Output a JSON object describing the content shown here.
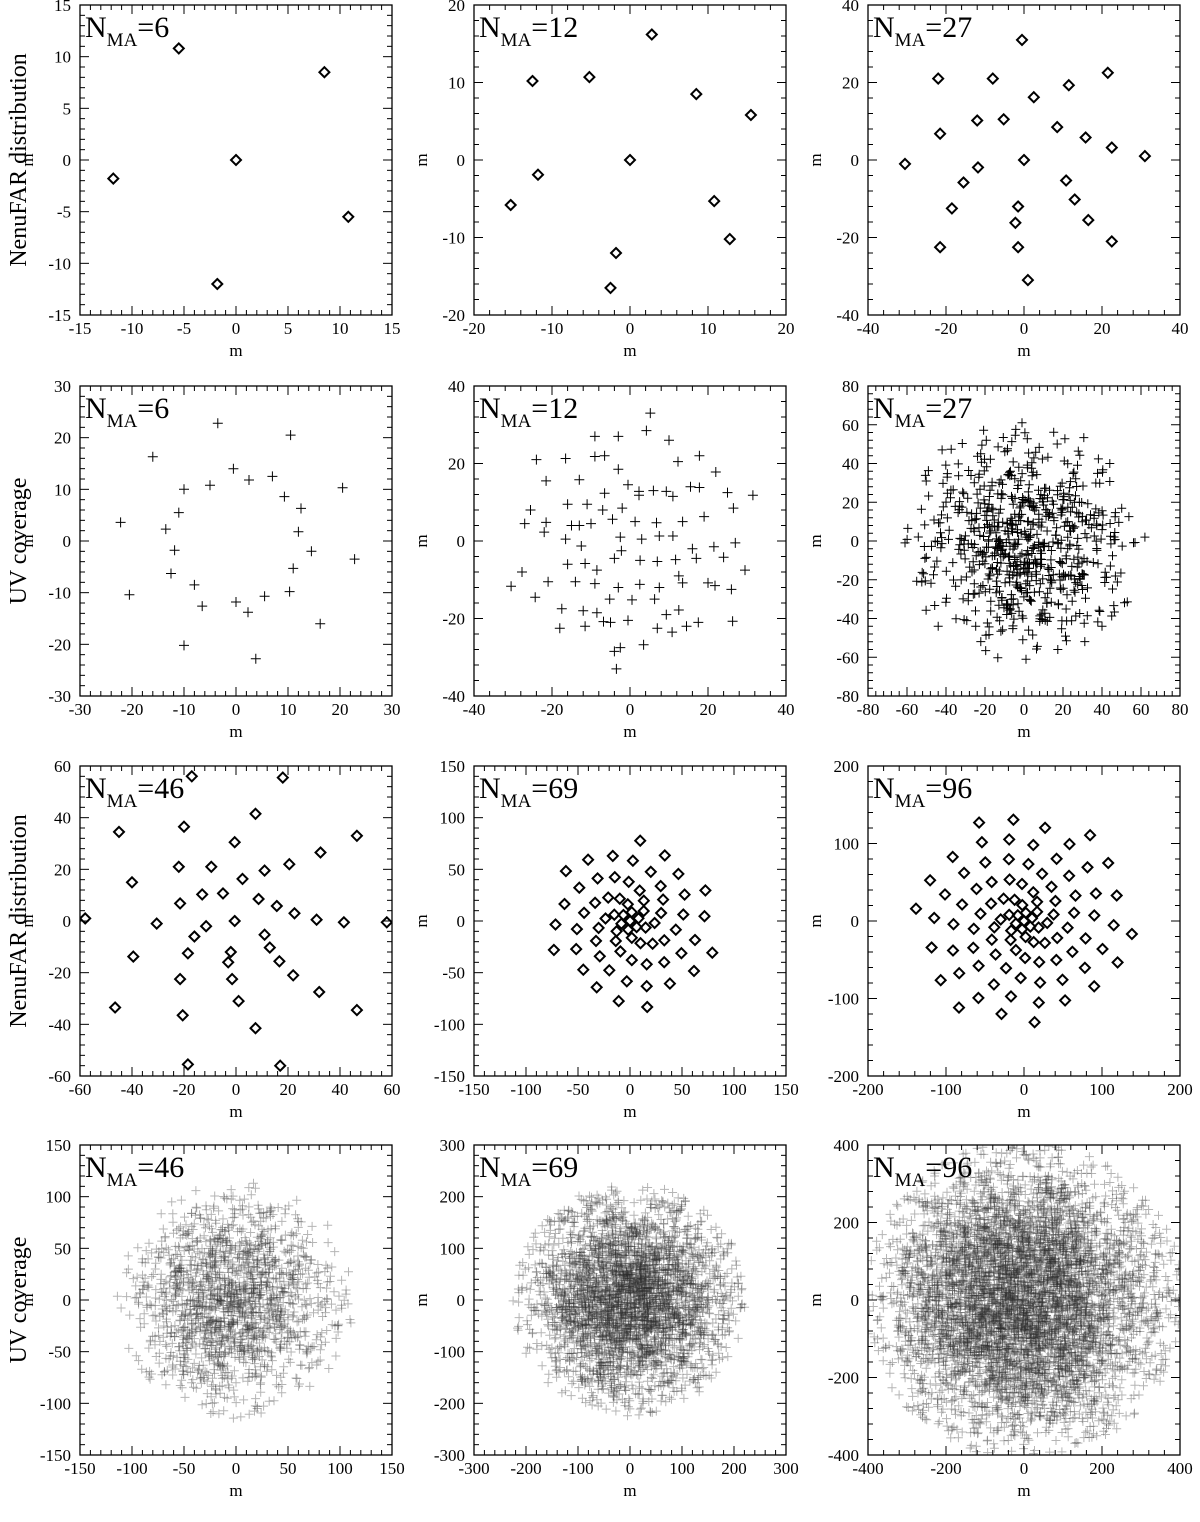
{
  "figure": {
    "row_labels": [
      "NenuFAR distribution",
      "UV coverage",
      "NenuFAR distribution",
      "UV coverage"
    ]
  },
  "chart_data": [
    {
      "type": "scatter",
      "title_main": "N",
      "title_sub": "MA",
      "title_tail": "=6",
      "xlabel": "m",
      "ylabel": "m",
      "marker": "diamond",
      "xlim": [
        -15,
        15
      ],
      "ylim": [
        -15,
        15
      ],
      "xticks": [
        -15,
        -10,
        -5,
        0,
        5,
        10,
        15
      ],
      "yticks": [
        -15,
        -10,
        -5,
        0,
        5,
        10,
        15
      ],
      "points": [
        [
          0,
          0
        ],
        [
          -5.5,
          10.8
        ],
        [
          8.5,
          8.5
        ],
        [
          -11.8,
          -1.8
        ],
        [
          10.8,
          -5.5
        ],
        [
          -1.8,
          -12
        ]
      ]
    },
    {
      "type": "scatter",
      "title_main": "N",
      "title_sub": "MA",
      "title_tail": "=12",
      "xlabel": "m",
      "ylabel": "m",
      "marker": "diamond",
      "xlim": [
        -20,
        20
      ],
      "ylim": [
        -20,
        20
      ],
      "xticks": [
        -20,
        -10,
        0,
        10,
        20
      ],
      "yticks": [
        -20,
        -10,
        0,
        10,
        20
      ],
      "points": [
        [
          0,
          0
        ],
        [
          -12.5,
          10.2
        ],
        [
          -5.2,
          10.7
        ],
        [
          2.8,
          16.2
        ],
        [
          8.5,
          8.5
        ],
        [
          15.5,
          5.8
        ],
        [
          -15.3,
          -5.8
        ],
        [
          -11.8,
          -1.9
        ],
        [
          10.8,
          -5.3
        ],
        [
          12.8,
          -10.2
        ],
        [
          -1.8,
          -12
        ],
        [
          -2.5,
          -16.5
        ]
      ]
    },
    {
      "type": "scatter",
      "title_main": "N",
      "title_sub": "MA",
      "title_tail": "=27",
      "xlabel": "m",
      "ylabel": "m",
      "marker": "diamond",
      "xlim": [
        -40,
        40
      ],
      "ylim": [
        -40,
        40
      ],
      "xticks": [
        -40,
        -20,
        0,
        20,
        40
      ],
      "yticks": [
        -40,
        -20,
        0,
        20,
        40
      ],
      "points": [
        [
          0,
          0
        ],
        [
          -0.5,
          31
        ],
        [
          -22,
          21
        ],
        [
          -8,
          21
        ],
        [
          21.5,
          22.5
        ],
        [
          2.5,
          16.2
        ],
        [
          11.5,
          19.3
        ],
        [
          -12,
          10.2
        ],
        [
          -5.2,
          10.5
        ],
        [
          8.5,
          8.5
        ],
        [
          -21.5,
          6.8
        ],
        [
          15.8,
          5.8
        ],
        [
          22.5,
          3.2
        ],
        [
          31,
          1
        ],
        [
          -30.5,
          -1
        ],
        [
          -11.8,
          -1.9
        ],
        [
          -15.5,
          -5.8
        ],
        [
          10.8,
          -5.3
        ],
        [
          13,
          -10.2
        ],
        [
          -18.5,
          -12.5
        ],
        [
          -1.5,
          -12
        ],
        [
          -2.2,
          -16.2
        ],
        [
          16.5,
          -15.5
        ],
        [
          -21.5,
          -22.5
        ],
        [
          -1.5,
          -22.5
        ],
        [
          22.5,
          -21
        ],
        [
          1,
          -31
        ]
      ]
    },
    {
      "type": "scatter",
      "title_main": "N",
      "title_sub": "MA",
      "title_tail": "=6",
      "xlabel": "m",
      "ylabel": "m",
      "marker": "plus",
      "xlim": [
        -30,
        30
      ],
      "ylim": [
        -30,
        30
      ],
      "xticks": [
        -30,
        -20,
        -10,
        0,
        10,
        20,
        30
      ],
      "yticks": [
        -30,
        -20,
        -10,
        0,
        10,
        20,
        30
      ],
      "points": [
        [
          -3.5,
          22.8
        ],
        [
          10.5,
          20.5
        ],
        [
          -16,
          16.3
        ],
        [
          -0.5,
          14
        ],
        [
          -10,
          10
        ],
        [
          -5,
          10.8
        ],
        [
          7,
          12.5
        ],
        [
          2.5,
          11.8
        ],
        [
          9.3,
          8.6
        ],
        [
          12.5,
          6.3
        ],
        [
          -22.2,
          3.6
        ],
        [
          -11,
          5.5
        ],
        [
          -13.5,
          2.3
        ],
        [
          12,
          1.8
        ],
        [
          20.5,
          10.3
        ],
        [
          -11.8,
          -1.8
        ],
        [
          14.5,
          -2
        ],
        [
          22.8,
          -3.5
        ],
        [
          -12.5,
          -6.3
        ],
        [
          11,
          -5.3
        ],
        [
          -8,
          -8.5
        ],
        [
          -6.5,
          -12.6
        ],
        [
          -20.5,
          -10.4
        ],
        [
          10.3,
          -9.8
        ],
        [
          0,
          -11.8
        ],
        [
          5.5,
          -10.7
        ],
        [
          2.3,
          -13.8
        ],
        [
          16.2,
          -16
        ],
        [
          -10,
          -20.2
        ],
        [
          3.8,
          -22.8
        ]
      ]
    },
    {
      "type": "scatter",
      "title_main": "N",
      "title_sub": "MA",
      "title_tail": "=12",
      "xlabel": "m",
      "ylabel": "m",
      "marker": "plus",
      "xlim": [
        -40,
        40
      ],
      "ylim": [
        -40,
        40
      ],
      "xticks": [
        -40,
        -20,
        0,
        20,
        40
      ],
      "yticks": [
        -40,
        -20,
        0,
        20,
        40
      ],
      "points": [
        [
          5.2,
          33
        ],
        [
          4.2,
          28.5
        ],
        [
          -9,
          27
        ],
        [
          -3,
          27
        ],
        [
          10,
          26
        ],
        [
          -24,
          21
        ],
        [
          -16.5,
          21.3
        ],
        [
          -9,
          21.8
        ],
        [
          -6.5,
          22
        ],
        [
          12.3,
          20.5
        ],
        [
          17.8,
          22
        ],
        [
          22,
          17.8
        ],
        [
          -21.5,
          15.5
        ],
        [
          -13,
          15.8
        ],
        [
          -3,
          18.5
        ],
        [
          -0.5,
          14.5
        ],
        [
          2.3,
          12.8
        ],
        [
          6,
          13
        ],
        [
          9.3,
          12.8
        ],
        [
          17.8,
          13.8
        ],
        [
          2.3,
          11.8
        ],
        [
          -6.5,
          12.3
        ],
        [
          -7,
          8
        ],
        [
          -2,
          8.5
        ],
        [
          11,
          11.5
        ],
        [
          15.5,
          14
        ],
        [
          25,
          12.5
        ],
        [
          31.5,
          11.8
        ],
        [
          -25.5,
          8
        ],
        [
          -16,
          9.5
        ],
        [
          -11,
          9.5
        ],
        [
          -15,
          4
        ],
        [
          -10,
          4.5
        ],
        [
          -4.5,
          5.6
        ],
        [
          1.3,
          5
        ],
        [
          6.8,
          4.7
        ],
        [
          13.5,
          5
        ],
        [
          19,
          6.3
        ],
        [
          26.5,
          8.5
        ],
        [
          -27,
          4.5
        ],
        [
          -21.5,
          4.8
        ],
        [
          -22,
          2.3
        ],
        [
          -16.5,
          0.5
        ],
        [
          -12.5,
          -1.3
        ],
        [
          -2.5,
          1
        ],
        [
          3,
          0.5
        ],
        [
          7.5,
          1.3
        ],
        [
          11,
          1.3
        ],
        [
          16,
          -2
        ],
        [
          21.5,
          -1.5
        ],
        [
          27,
          -0.5
        ],
        [
          -21,
          -10.5
        ],
        [
          -27.7,
          -8
        ],
        [
          -16,
          -6
        ],
        [
          -11.5,
          -5.8
        ],
        [
          -8.5,
          -7.5
        ],
        [
          -4,
          -4.5
        ],
        [
          2.6,
          -5
        ],
        [
          7,
          -5.3
        ],
        [
          11.7,
          -4.8
        ],
        [
          17,
          -4.5
        ],
        [
          -2.2,
          -2.5
        ],
        [
          24,
          -4.2
        ],
        [
          29.5,
          -7.5
        ],
        [
          -30.5,
          -11.7
        ],
        [
          -24.3,
          -14.5
        ],
        [
          -14,
          -10.5
        ],
        [
          -9,
          -11
        ],
        [
          -3,
          -12
        ],
        [
          2.5,
          -11.2
        ],
        [
          7.5,
          -12
        ],
        [
          13.5,
          -10.8
        ],
        [
          20,
          -10.8
        ],
        [
          26,
          -12.5
        ],
        [
          -17.5,
          -17.5
        ],
        [
          -12,
          -18
        ],
        [
          -5.2,
          -15
        ],
        [
          0.5,
          -15.2
        ],
        [
          6.3,
          -15
        ],
        [
          -18,
          -22.5
        ],
        [
          -11.5,
          -22
        ],
        [
          -8.5,
          -18.5
        ],
        [
          -5,
          -21
        ],
        [
          9.3,
          -19
        ],
        [
          12.5,
          -17.8
        ],
        [
          -2.5,
          -27.5
        ],
        [
          -4,
          -28.5
        ],
        [
          3.5,
          -26.8
        ],
        [
          10.8,
          -23.5
        ],
        [
          14.5,
          -22
        ],
        [
          17.5,
          -21
        ],
        [
          -6.8,
          -20.8
        ],
        [
          7,
          -22.5
        ],
        [
          21.8,
          -11.5
        ],
        [
          -3.5,
          -33
        ],
        [
          26.3,
          -20.7
        ],
        [
          -0.5,
          -20.5
        ],
        [
          -13,
          4
        ],
        [
          12.5,
          -9
        ]
      ]
    },
    {
      "type": "scatter",
      "title_main": "N",
      "title_sub": "MA",
      "title_tail": "=27",
      "xlabel": "m",
      "ylabel": "m",
      "marker": "plus",
      "xlim": [
        -80,
        80
      ],
      "ylim": [
        -80,
        80
      ],
      "xticks": [
        -80,
        -60,
        -40,
        -20,
        0,
        20,
        40,
        60,
        80
      ],
      "yticks": [
        -80,
        -60,
        -40,
        -20,
        0,
        20,
        40,
        60,
        80
      ],
      "generated": true,
      "n_points": 700,
      "radius": 62,
      "extreme_points": [
        [
          -61,
          -1
        ],
        [
          62,
          2
        ],
        [
          1,
          -61
        ],
        [
          -1,
          61
        ],
        [
          -44,
          -44
        ],
        [
          44,
          40
        ],
        [
          -42,
          47
        ],
        [
          40,
          -44
        ]
      ]
    },
    {
      "type": "scatter",
      "title_main": "N",
      "title_sub": "MA",
      "title_tail": "=46",
      "xlabel": "m",
      "ylabel": "m",
      "marker": "diamond",
      "xlim": [
        -60,
        60
      ],
      "ylim": [
        -60,
        60
      ],
      "xticks": [
        -60,
        -40,
        -20,
        0,
        20,
        40,
        60
      ],
      "yticks": [
        -60,
        -40,
        -20,
        0,
        20,
        40,
        60
      ],
      "points": [
        [
          -17,
          56
        ],
        [
          18,
          55.5
        ],
        [
          -45,
          34.5
        ],
        [
          -20,
          36.5
        ],
        [
          7.5,
          41.5
        ],
        [
          46.5,
          33
        ],
        [
          -0.5,
          30.5
        ],
        [
          -40,
          15
        ],
        [
          -22,
          21
        ],
        [
          -9.5,
          21
        ],
        [
          20.5,
          22
        ],
        [
          32.5,
          26.5
        ],
        [
          2.5,
          16.3
        ],
        [
          11,
          19.5
        ],
        [
          -13,
          10.3
        ],
        [
          -5,
          10.7
        ],
        [
          8.7,
          8.5
        ],
        [
          -21.5,
          6.8
        ],
        [
          15.7,
          5.8
        ],
        [
          22.5,
          3
        ],
        [
          -58,
          1
        ],
        [
          -30.5,
          -1
        ],
        [
          -0.5,
          0
        ],
        [
          -11.5,
          -2
        ],
        [
          31,
          0.5
        ],
        [
          41.5,
          -0.5
        ],
        [
          58,
          -0.5
        ],
        [
          -16,
          -6
        ],
        [
          11,
          -5.3
        ],
        [
          -39.5,
          -13.8
        ],
        [
          -18.5,
          -12.5
        ],
        [
          -2,
          -12
        ],
        [
          13,
          -10.3
        ],
        [
          -3,
          -16
        ],
        [
          16.7,
          -15.6
        ],
        [
          -21.5,
          -22.5
        ],
        [
          -1.5,
          -22.5
        ],
        [
          22,
          -21
        ],
        [
          1,
          -31
        ],
        [
          32,
          -27.5
        ],
        [
          -46.5,
          -33.5
        ],
        [
          -20.5,
          -36.5
        ],
        [
          7.5,
          -41.5
        ],
        [
          46.5,
          -34.5
        ],
        [
          -18.5,
          -55.5
        ],
        [
          17,
          -56
        ]
      ]
    },
    {
      "type": "scatter",
      "title_main": "N",
      "title_sub": "MA",
      "title_tail": "=69",
      "xlabel": "m",
      "ylabel": "m",
      "marker": "diamond",
      "xlim": [
        -150,
        150
      ],
      "ylim": [
        -150,
        150
      ],
      "xticks": [
        -150,
        -100,
        -50,
        0,
        50,
        100,
        150
      ],
      "yticks": [
        -150,
        -100,
        -50,
        0,
        50,
        100,
        150
      ],
      "generated": true,
      "n_points": 69
    },
    {
      "type": "scatter",
      "title_main": "N",
      "title_sub": "MA",
      "title_tail": "=96",
      "xlabel": "m",
      "ylabel": "m",
      "marker": "diamond",
      "xlim": [
        -200,
        200
      ],
      "ylim": [
        -200,
        200
      ],
      "xticks": [
        -200,
        -100,
        0,
        100,
        200
      ],
      "yticks": [
        -200,
        -100,
        0,
        100,
        200
      ],
      "generated": true,
      "n_points": 96
    },
    {
      "type": "scatter",
      "title_main": "N",
      "title_sub": "MA",
      "title_tail": "=46",
      "xlabel": "m",
      "ylabel": "m",
      "marker": "plus",
      "xlim": [
        -150,
        150
      ],
      "ylim": [
        -150,
        150
      ],
      "xticks": [
        -150,
        -100,
        -50,
        0,
        50,
        100,
        150
      ],
      "yticks": [
        -150,
        -100,
        -50,
        0,
        50,
        100,
        150
      ],
      "generated": true,
      "n_points": 1600,
      "radius": 115
    },
    {
      "type": "scatter",
      "title_main": "N",
      "title_sub": "MA",
      "title_tail": "=69",
      "xlabel": "m",
      "ylabel": "m",
      "marker": "plus",
      "xlim": [
        -300,
        300
      ],
      "ylim": [
        -300,
        300
      ],
      "xticks": [
        -300,
        -200,
        -100,
        0,
        100,
        200,
        300
      ],
      "yticks": [
        -300,
        -200,
        -100,
        0,
        100,
        200,
        300
      ],
      "generated": true,
      "n_points": 3200,
      "radius": 225
    },
    {
      "type": "scatter",
      "title_main": "N",
      "title_sub": "MA",
      "title_tail": "=96",
      "xlabel": "m",
      "ylabel": "m",
      "marker": "plus",
      "xlim": [
        -400,
        400
      ],
      "ylim": [
        -400,
        400
      ],
      "xticks": [
        -400,
        -200,
        0,
        200,
        400
      ],
      "yticks": [
        -400,
        -200,
        0,
        200,
        400
      ],
      "generated": true,
      "n_points": 5500,
      "radius": 410
    }
  ]
}
